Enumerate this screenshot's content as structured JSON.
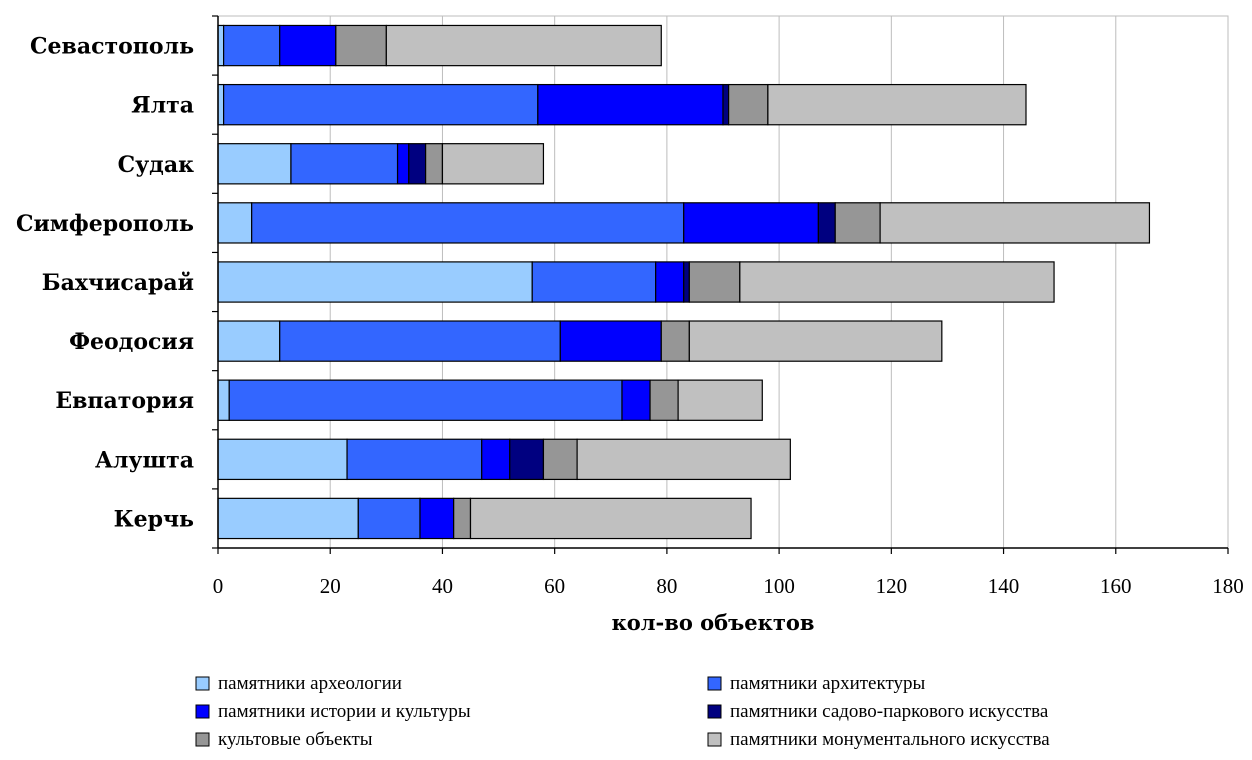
{
  "chart_data": {
    "type": "bar",
    "orientation": "horizontal",
    "stacked": true,
    "title": "",
    "xlabel": "кол-во объектов",
    "ylabel": "",
    "xlim": [
      0,
      180
    ],
    "x_ticks": [
      0,
      20,
      40,
      60,
      80,
      100,
      120,
      140,
      160,
      180
    ],
    "grid": "vertical",
    "legend_position": "bottom",
    "categories": [
      "Севастополь",
      "Ялта",
      "Судак",
      "Симферополь",
      "Бахчисарай",
      "Феодосия",
      "Евпатория",
      "Алушта",
      "Керчь"
    ],
    "series": [
      {
        "name": "памятники археологии",
        "color": "#99ccff",
        "values": [
          1,
          1,
          13,
          6,
          56,
          11,
          2,
          23,
          25
        ]
      },
      {
        "name": "памятники архитектуры",
        "color": "#3366ff",
        "values": [
          10,
          56,
          19,
          77,
          22,
          50,
          70,
          24,
          11
        ]
      },
      {
        "name": "памятники истории и культуры",
        "color": "#0000ff",
        "values": [
          10,
          33,
          2,
          24,
          5,
          18,
          5,
          5,
          6
        ]
      },
      {
        "name": "памятники садово-паркового искусства",
        "color": "#000080",
        "values": [
          0,
          1,
          3,
          3,
          1,
          0,
          0,
          6,
          0
        ]
      },
      {
        "name": "культовые объекты",
        "color": "#969696",
        "values": [
          9,
          7,
          3,
          8,
          9,
          5,
          5,
          6,
          3
        ]
      },
      {
        "name": "памятники монументального искусства",
        "color": "#c0c0c0",
        "values": [
          49,
          46,
          18,
          48,
          56,
          45,
          15,
          38,
          50
        ]
      }
    ]
  }
}
